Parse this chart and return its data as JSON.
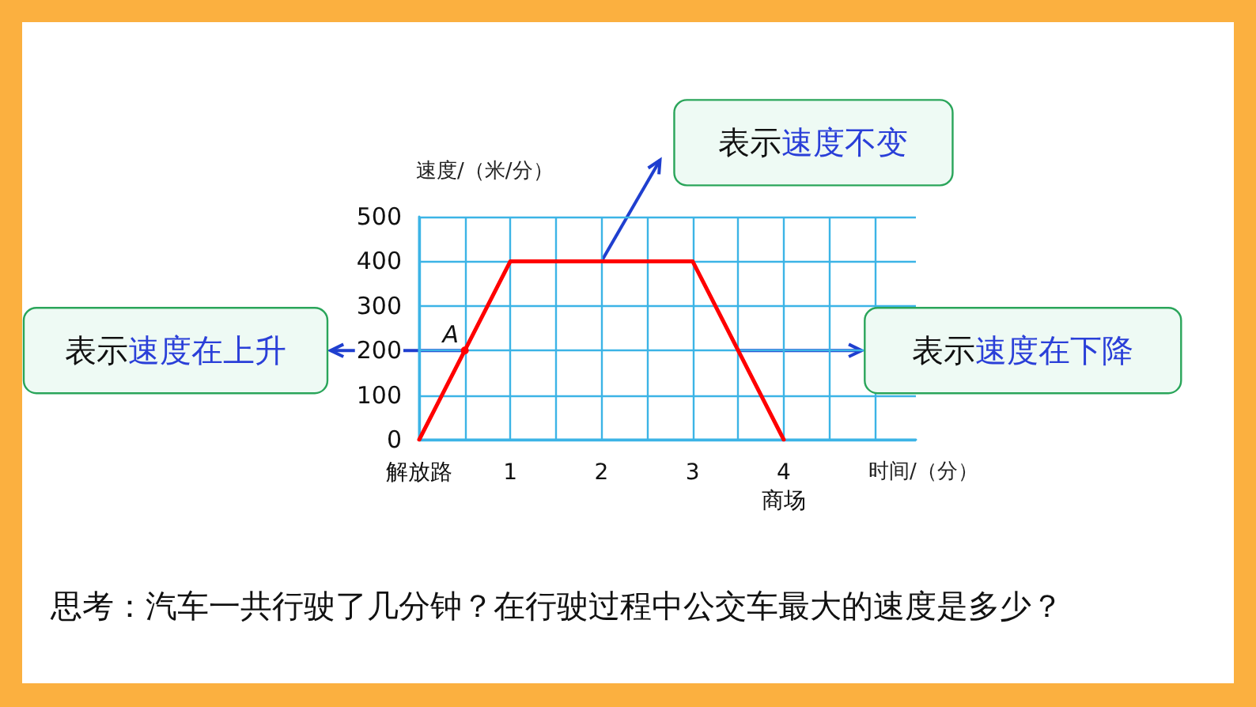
{
  "chart_data": {
    "type": "line",
    "xlabel": "时间/（分）",
    "ylabel": "速度/（米/分）",
    "x": [
      0,
      1,
      3,
      4
    ],
    "series": [
      {
        "color": "#ff0000",
        "values": [
          0,
          400,
          400,
          0
        ]
      }
    ],
    "xlim": [
      0,
      5.45
    ],
    "ylim": [
      0,
      500
    ],
    "xticks": [
      {
        "value": 0,
        "label": "解放路"
      },
      {
        "value": 0.5,
        "label": null
      },
      1,
      {
        "value": 1.5,
        "label": null
      },
      2,
      {
        "value": 2.5,
        "label": null
      },
      3,
      {
        "value": 3.5,
        "label": null
      },
      {
        "value": 4,
        "label": "4\n商场"
      },
      {
        "value": 4.5,
        "label": null
      },
      {
        "value": 5,
        "label": null
      }
    ],
    "yticks": [
      0,
      100,
      200,
      300,
      400,
      500
    ],
    "grid": true,
    "marker": "none",
    "line_style": "solid",
    "annotations": [
      {
        "text": "A",
        "x": 0.5,
        "y": 200
      },
      "表示速度在上升",
      "表示速度不变",
      "表示速度在下降",
      "思考：汽车一共行驶了几分钟？在行驶过程中公交车最大的速度是多少？"
    ]
  }
}
